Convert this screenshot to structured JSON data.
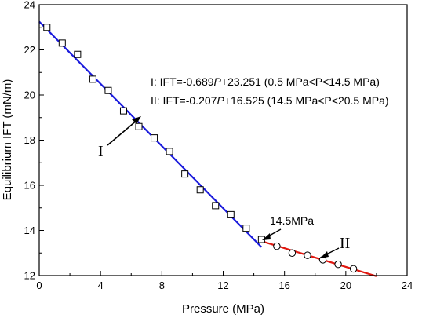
{
  "chart_data": {
    "type": "scatter",
    "xlabel": "Pressure (MPa)",
    "ylabel": "Equilibrium IFT (mN/m)",
    "xlim": [
      0,
      24
    ],
    "ylim": [
      12,
      24
    ],
    "xticks": [
      0,
      4,
      8,
      12,
      16,
      20,
      24
    ],
    "yticks": [
      12,
      14,
      16,
      18,
      20,
      22,
      24
    ],
    "series": [
      {
        "marker": "square",
        "x": [
          0.5,
          1.5,
          2.5,
          3.5,
          4.5,
          5.5,
          6.5,
          7.5,
          8.5,
          9.5,
          10.5,
          11.5,
          12.5,
          13.5,
          14.5
        ],
        "y": [
          23.0,
          22.3,
          21.8,
          20.7,
          20.2,
          19.3,
          18.6,
          18.1,
          17.5,
          16.5,
          15.8,
          15.1,
          14.7,
          14.1,
          13.6
        ]
      },
      {
        "marker": "circle",
        "x": [
          15.5,
          16.5,
          17.5,
          18.5,
          19.5,
          20.5
        ],
        "y": [
          13.3,
          13.0,
          12.9,
          12.7,
          12.5,
          12.3
        ]
      }
    ],
    "fit_lines": [
      {
        "label": "I",
        "color": "#1a1adc",
        "x_start": 0,
        "x_end": 14.5,
        "slope": -0.689,
        "intercept": 23.251
      },
      {
        "label": "II",
        "color": "#e0170f",
        "x_start": 14.5,
        "x_end": 22,
        "slope": -0.207,
        "intercept": 16.525
      }
    ],
    "annotations": {
      "eq1_prefix": "I: IFT=-0.689",
      "eq1_var": "P",
      "eq1_suffix": "+23.251 (0.5 MPa<P<14.5 MPa)",
      "eq2_prefix": "II:  IFT=-0.207",
      "eq2_var": "P",
      "eq2_suffix": "+16.525 (14.5 MPa<P<20.5 MPa)",
      "breakpoint": "14.5MPa",
      "label_I": "I",
      "label_II": "II"
    }
  }
}
